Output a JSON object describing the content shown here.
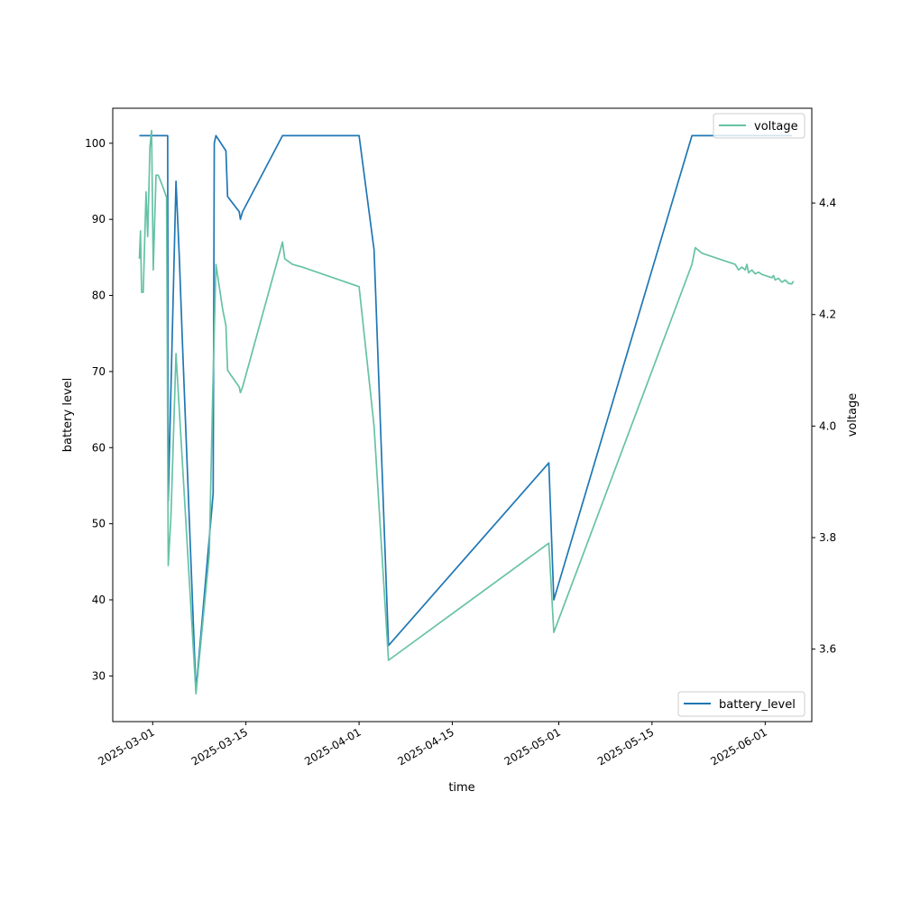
{
  "chart_data": {
    "type": "line",
    "xlabel": "time",
    "ylabel_left": "battery level",
    "ylabel_right": "voltage",
    "xlim": [
      "2025-02-23",
      "2025-06-08"
    ],
    "ylim_left": [
      24,
      104.6
    ],
    "ylim_right": [
      3.47,
      4.57
    ],
    "x_ticks": [
      "2025-03-01",
      "2025-03-15",
      "2025-04-01",
      "2025-04-15",
      "2025-05-01",
      "2025-05-15",
      "2025-06-01"
    ],
    "y_ticks_left": [
      30,
      40,
      50,
      60,
      70,
      80,
      90,
      100
    ],
    "y_ticks_right": [
      3.6,
      3.8,
      4.0,
      4.2,
      4.4
    ],
    "grid": false,
    "series": [
      {
        "name": "battery_level",
        "axis": "left",
        "color": "#1f77b4",
        "legend_position": "lower right",
        "points": [
          [
            "2025-02-27 00:00",
            101
          ],
          [
            "2025-03-03 06:00",
            101
          ],
          [
            "2025-03-03 08:00",
            53
          ],
          [
            "2025-03-04 12:00",
            95
          ],
          [
            "2025-03-05 00:00",
            85
          ],
          [
            "2025-03-05 12:00",
            73
          ],
          [
            "2025-03-07 12:00",
            28
          ],
          [
            "2025-03-10 02:00",
            54
          ],
          [
            "2025-03-10 06:00",
            100
          ],
          [
            "2025-03-10 12:00",
            101
          ],
          [
            "2025-03-12 00:00",
            99
          ],
          [
            "2025-03-12 06:00",
            93
          ],
          [
            "2025-03-14 00:00",
            91
          ],
          [
            "2025-03-14 04:00",
            90
          ],
          [
            "2025-03-14 12:00",
            91
          ],
          [
            "2025-03-20 12:00",
            101
          ],
          [
            "2025-04-01 00:00",
            101
          ],
          [
            "2025-04-03 06:00",
            86
          ],
          [
            "2025-04-05 10:00",
            34
          ],
          [
            "2025-04-29 12:00",
            58
          ],
          [
            "2025-04-30 06:00",
            40
          ],
          [
            "2025-05-21 00:00",
            101
          ],
          [
            "2025-06-05 00:00",
            101
          ]
        ]
      },
      {
        "name": "voltage",
        "axis": "right",
        "color": "#66c2a5",
        "legend_position": "upper right",
        "points": [
          [
            "2025-02-27 00:00",
            4.3
          ],
          [
            "2025-02-27 04:00",
            4.35
          ],
          [
            "2025-02-27 08:00",
            4.24
          ],
          [
            "2025-02-27 14:00",
            4.24
          ],
          [
            "2025-02-28 00:00",
            4.42
          ],
          [
            "2025-02-28 06:00",
            4.34
          ],
          [
            "2025-02-28 14:00",
            4.5
          ],
          [
            "2025-02-28 20:00",
            4.53
          ],
          [
            "2025-03-01 02:00",
            4.28
          ],
          [
            "2025-03-01 12:00",
            4.45
          ],
          [
            "2025-03-01 20:00",
            4.45
          ],
          [
            "2025-03-02 12:00",
            4.43
          ],
          [
            "2025-03-03 02:00",
            4.41
          ],
          [
            "2025-03-03 08:00",
            3.75
          ],
          [
            "2025-03-03 18:00",
            3.84
          ],
          [
            "2025-03-04 12:00",
            4.13
          ],
          [
            "2025-03-07 12:00",
            3.52
          ],
          [
            "2025-03-09 12:00",
            3.77
          ],
          [
            "2025-03-10 00:00",
            4.05
          ],
          [
            "2025-03-10 12:00",
            4.29
          ],
          [
            "2025-03-11 12:00",
            4.21
          ],
          [
            "2025-03-12 00:00",
            4.18
          ],
          [
            "2025-03-12 06:00",
            4.1
          ],
          [
            "2025-03-14 00:00",
            4.07
          ],
          [
            "2025-03-14 04:00",
            4.06
          ],
          [
            "2025-03-14 12:00",
            4.07
          ],
          [
            "2025-03-20 12:00",
            4.33
          ],
          [
            "2025-03-20 20:00",
            4.3
          ],
          [
            "2025-03-22 00:00",
            4.29
          ],
          [
            "2025-03-23 12:00",
            4.285
          ],
          [
            "2025-04-01 00:00",
            4.25
          ],
          [
            "2025-04-03 06:00",
            4.0
          ],
          [
            "2025-04-05 10:00",
            3.58
          ],
          [
            "2025-04-29 12:00",
            3.79
          ],
          [
            "2025-04-30 06:00",
            3.63
          ],
          [
            "2025-05-21 00:00",
            4.29
          ],
          [
            "2025-05-21 12:00",
            4.32
          ],
          [
            "2025-05-22 12:00",
            4.31
          ],
          [
            "2025-05-25 00:00",
            4.3
          ],
          [
            "2025-05-27 12:00",
            4.29
          ],
          [
            "2025-05-28 00:00",
            4.28
          ],
          [
            "2025-05-28 12:00",
            4.285
          ],
          [
            "2025-05-29 00:00",
            4.28
          ],
          [
            "2025-05-29 06:00",
            4.29
          ],
          [
            "2025-05-29 12:00",
            4.275
          ],
          [
            "2025-05-30 00:00",
            4.28
          ],
          [
            "2025-05-30 12:00",
            4.273
          ],
          [
            "2025-05-31 00:00",
            4.276
          ],
          [
            "2025-05-31 12:00",
            4.272
          ],
          [
            "2025-06-01 00:00",
            4.27
          ],
          [
            "2025-06-01 12:00",
            4.268
          ],
          [
            "2025-06-02 00:00",
            4.266
          ],
          [
            "2025-06-02 06:00",
            4.27
          ],
          [
            "2025-06-02 12:00",
            4.262
          ],
          [
            "2025-06-03 00:00",
            4.265
          ],
          [
            "2025-06-03 12:00",
            4.258
          ],
          [
            "2025-06-04 00:00",
            4.262
          ],
          [
            "2025-06-04 12:00",
            4.256
          ],
          [
            "2025-06-05 00:00",
            4.255
          ],
          [
            "2025-06-05 06:00",
            4.26
          ]
        ]
      }
    ]
  }
}
